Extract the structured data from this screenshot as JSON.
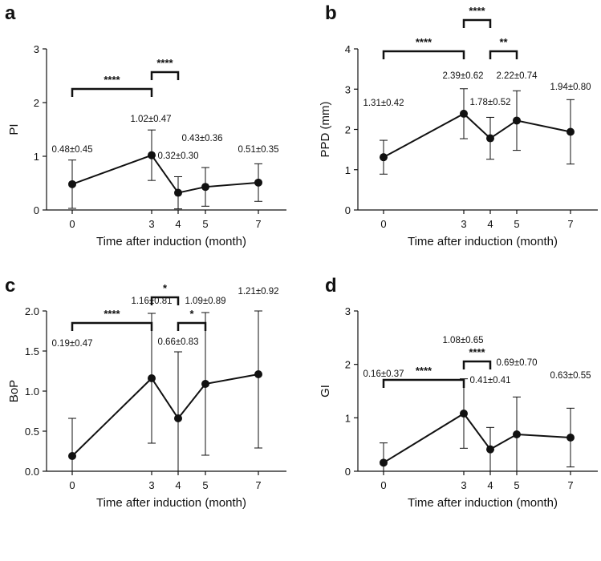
{
  "chart_data": [
    {
      "type": "line",
      "panel": "a",
      "xlabel": "Time after induction (month)",
      "ylabel": "PI",
      "ylim": [
        0,
        3
      ],
      "yticks": [
        "0",
        "1",
        "2",
        "3"
      ],
      "x": [
        0,
        3,
        4,
        5,
        7
      ],
      "xticks": [
        "0",
        "3",
        "4",
        "5",
        "7"
      ],
      "values": [
        0.48,
        1.02,
        0.32,
        0.43,
        0.51
      ],
      "sd": [
        0.45,
        0.47,
        0.3,
        0.36,
        0.35
      ],
      "labels": [
        "0.48±0.45",
        "1.02±0.47",
        "0.32±0.30",
        "0.43±0.36",
        "0.51±0.35"
      ],
      "significance": [
        {
          "from": 0,
          "to": 3,
          "label": "****"
        },
        {
          "from": 3,
          "to": 4,
          "label": "****"
        }
      ]
    },
    {
      "type": "line",
      "panel": "b",
      "xlabel": "Time after induction (month)",
      "ylabel": "PPD (mm)",
      "ylim": [
        0,
        4
      ],
      "yticks": [
        "0",
        "1",
        "2",
        "3",
        "4"
      ],
      "x": [
        0,
        3,
        4,
        5,
        7
      ],
      "xticks": [
        "0",
        "3",
        "4",
        "5",
        "7"
      ],
      "values": [
        1.31,
        2.39,
        1.78,
        2.22,
        1.94
      ],
      "sd": [
        0.42,
        0.62,
        0.52,
        0.74,
        0.8
      ],
      "labels": [
        "1.31±0.42",
        "2.39±0.62",
        "1.78±0.52",
        "2.22±0.74",
        "1.94±0.80"
      ],
      "significance": [
        {
          "from": 0,
          "to": 3,
          "label": "****"
        },
        {
          "from": 3,
          "to": 4,
          "label": "****"
        },
        {
          "from": 4,
          "to": 5,
          "label": "**"
        }
      ]
    },
    {
      "type": "line",
      "panel": "c",
      "xlabel": "Time after induction (month)",
      "ylabel": "BoP",
      "ylim": [
        0,
        2.0
      ],
      "yticks": [
        "0.0",
        "0.5",
        "1.0",
        "1.5",
        "2.0"
      ],
      "x": [
        0,
        3,
        4,
        5,
        7
      ],
      "xticks": [
        "0",
        "3",
        "4",
        "5",
        "7"
      ],
      "values": [
        0.19,
        1.16,
        0.66,
        1.09,
        1.21
      ],
      "sd": [
        0.47,
        0.81,
        0.83,
        0.89,
        0.92
      ],
      "labels": [
        "0.19±0.47",
        "1.16±0.81",
        "0.66±0.83",
        "1.09±0.89",
        "1.21±0.92"
      ],
      "significance": [
        {
          "from": 0,
          "to": 3,
          "label": "****"
        },
        {
          "from": 3,
          "to": 4,
          "label": "*"
        },
        {
          "from": 4,
          "to": 5,
          "label": "*"
        }
      ]
    },
    {
      "type": "line",
      "panel": "d",
      "xlabel": "Time after induction (month)",
      "ylabel": "GI",
      "ylim": [
        0,
        3
      ],
      "yticks": [
        "0",
        "1",
        "2",
        "3"
      ],
      "x": [
        0,
        3,
        4,
        5,
        7
      ],
      "xticks": [
        "0",
        "3",
        "4",
        "5",
        "7"
      ],
      "values": [
        0.16,
        1.08,
        0.41,
        0.69,
        0.63
      ],
      "sd": [
        0.37,
        0.65,
        0.41,
        0.7,
        0.55
      ],
      "labels": [
        "0.16±0.37",
        "1.08±0.65",
        "0.41±0.41",
        "0.69±0.70",
        "0.63±0.55"
      ],
      "significance": [
        {
          "from": 0,
          "to": 3,
          "label": "****"
        },
        {
          "from": 3,
          "to": 4,
          "label": "****"
        }
      ]
    }
  ]
}
